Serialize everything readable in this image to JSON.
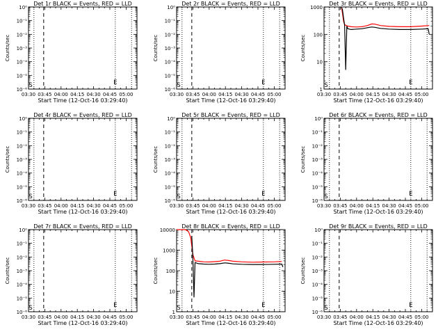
{
  "x_tick_labels": [
    "03:30",
    "03:45",
    "04:00",
    "04:15",
    "04:30",
    "04:45",
    "05:00"
  ],
  "x_label": "Start Time (12-Oct-16 03:29:40)",
  "y_label": "Counts/sec",
  "colors": {
    "events": "#000000",
    "lld": "#ff0000"
  },
  "chart_data": [
    {
      "type": "line",
      "title": "Det 1r BLACK = Events, RED = LLD",
      "yscale": "log",
      "ylim": [
        1,
        1e-06
      ],
      "y_ticks": [
        "10⁰",
        "10⁻¹",
        "10⁻²",
        "10⁻³",
        "10⁻⁴",
        "10⁻⁵",
        "10⁻⁶"
      ],
      "xlim_minutes": [
        0,
        100
      ],
      "start_dashed_min": 14,
      "dotted_min": [
        5,
        80,
        95
      ],
      "marker_S_min": 2,
      "marker_E_min": 80,
      "series": []
    },
    {
      "type": "line",
      "title": "Det 2r BLACK = Events, RED = LLD",
      "yscale": "log",
      "ylim": [
        1,
        1e-06
      ],
      "y_ticks": [
        "10⁰",
        "10⁻¹",
        "10⁻²",
        "10⁻³",
        "10⁻⁴",
        "10⁻⁵",
        "10⁻⁶"
      ],
      "xlim_minutes": [
        0,
        100
      ],
      "start_dashed_min": 14,
      "dotted_min": [
        5,
        80,
        95
      ],
      "marker_S_min": 2,
      "marker_E_min": 80,
      "series": []
    },
    {
      "type": "line",
      "title": "Det 3r BLACK = Events, RED = LLD",
      "yscale": "log",
      "ylim": [
        1,
        1000
      ],
      "y_ticks": [
        "1",
        "10",
        "100",
        "1000"
      ],
      "xlim_minutes": [
        0,
        100
      ],
      "start_dashed_min": 14,
      "dotted_min": [
        5,
        80,
        95
      ],
      "marker_S_min": 2,
      "marker_E_min": 80,
      "series": [
        {
          "color": "lld",
          "points": [
            [
              16,
              1000
            ],
            [
              17,
              600
            ],
            [
              18,
              300
            ],
            [
              19,
              230
            ],
            [
              20,
              215
            ],
            [
              22,
              200
            ],
            [
              25,
              190
            ],
            [
              30,
              185
            ],
            [
              35,
              190
            ],
            [
              40,
              210
            ],
            [
              44,
              240
            ],
            [
              47,
              235
            ],
            [
              52,
              210
            ],
            [
              60,
              195
            ],
            [
              70,
              190
            ],
            [
              80,
              190
            ],
            [
              90,
              200
            ],
            [
              97,
              210
            ]
          ]
        },
        {
          "color": "events",
          "points": [
            [
              16,
              1000
            ],
            [
              17,
              800
            ],
            [
              18,
              400
            ],
            [
              19,
              220
            ],
            [
              20,
              5
            ],
            [
              21,
              200
            ],
            [
              22,
              160
            ],
            [
              25,
              150
            ],
            [
              30,
              155
            ],
            [
              35,
              160
            ],
            [
              40,
              175
            ],
            [
              44,
              185
            ],
            [
              47,
              180
            ],
            [
              52,
              165
            ],
            [
              60,
              155
            ],
            [
              70,
              150
            ],
            [
              80,
              150
            ],
            [
              90,
              155
            ],
            [
              96,
              160
            ],
            [
              97,
              100
            ]
          ]
        }
      ]
    },
    {
      "type": "line",
      "title": "Det 4r BLACK = Events, RED = LLD",
      "yscale": "log",
      "ylim": [
        1,
        1e-06
      ],
      "y_ticks": [
        "10⁰",
        "10⁻¹",
        "10⁻²",
        "10⁻³",
        "10⁻⁴",
        "10⁻⁵",
        "10⁻⁶"
      ],
      "xlim_minutes": [
        0,
        100
      ],
      "start_dashed_min": 14,
      "dotted_min": [
        5,
        80,
        95
      ],
      "marker_S_min": 2,
      "marker_E_min": 80,
      "series": []
    },
    {
      "type": "line",
      "title": "Det 5r BLACK = Events, RED = LLD",
      "yscale": "log",
      "ylim": [
        1,
        1e-06
      ],
      "y_ticks": [
        "10⁰",
        "10⁻¹",
        "10⁻²",
        "10⁻³",
        "10⁻⁴",
        "10⁻⁵",
        "10⁻⁶"
      ],
      "xlim_minutes": [
        0,
        100
      ],
      "start_dashed_min": 14,
      "dotted_min": [
        5,
        80,
        95
      ],
      "marker_S_min": 2,
      "marker_E_min": 80,
      "series": []
    },
    {
      "type": "line",
      "title": "Det 6r BLACK = Events, RED = LLD",
      "yscale": "log",
      "ylim": [
        1,
        1e-06
      ],
      "y_ticks": [
        "10⁰",
        "10⁻¹",
        "10⁻²",
        "10⁻³",
        "10⁻⁴",
        "10⁻⁵",
        "10⁻⁶"
      ],
      "xlim_minutes": [
        0,
        100
      ],
      "start_dashed_min": 14,
      "dotted_min": [
        5,
        80,
        95
      ],
      "marker_S_min": 2,
      "marker_E_min": 80,
      "series": []
    },
    {
      "type": "line",
      "title": "Det 7r BLACK = Events, RED = LLD",
      "yscale": "log",
      "ylim": [
        1,
        1e-06
      ],
      "y_ticks": [
        "10⁰",
        "10⁻¹",
        "10⁻²",
        "10⁻³",
        "10⁻⁴",
        "10⁻⁵",
        "10⁻⁶"
      ],
      "xlim_minutes": [
        0,
        100
      ],
      "start_dashed_min": 14,
      "dotted_min": [
        5,
        80,
        95
      ],
      "marker_S_min": 2,
      "marker_E_min": 80,
      "series": []
    },
    {
      "type": "line",
      "title": "Det 8r BLACK = Events, RED = LLD",
      "yscale": "log",
      "ylim": [
        1,
        10000
      ],
      "y_ticks": [
        "1",
        "10",
        "100",
        "1000",
        "10000"
      ],
      "xlim_minutes": [
        0,
        100
      ],
      "start_dashed_min": 14,
      "dotted_min": [
        5,
        80,
        95
      ],
      "marker_S_min": 2,
      "marker_E_min": 80,
      "series": [
        {
          "color": "lld",
          "points": [
            [
              0,
              10000
            ],
            [
              8,
              10000
            ],
            [
              11,
              8000
            ],
            [
              13,
              4000
            ],
            [
              15,
              600
            ],
            [
              17,
              300
            ],
            [
              20,
              290
            ],
            [
              25,
              270
            ],
            [
              30,
              265
            ],
            [
              35,
              275
            ],
            [
              40,
              290
            ],
            [
              44,
              330
            ],
            [
              47,
              320
            ],
            [
              52,
              290
            ],
            [
              60,
              270
            ],
            [
              70,
              260
            ],
            [
              80,
              265
            ],
            [
              90,
              270
            ],
            [
              97,
              280
            ]
          ]
        },
        {
          "color": "events",
          "points": [
            [
              14,
              5000
            ],
            [
              15,
              400
            ],
            [
              16,
              5
            ],
            [
              17,
              250
            ],
            [
              20,
              220
            ],
            [
              25,
              210
            ],
            [
              30,
              205
            ],
            [
              35,
              210
            ],
            [
              40,
              220
            ],
            [
              44,
              240
            ],
            [
              47,
              235
            ],
            [
              52,
              215
            ],
            [
              60,
              205
            ],
            [
              70,
              200
            ],
            [
              80,
              200
            ],
            [
              90,
              205
            ],
            [
              97,
              210
            ],
            [
              98,
              150
            ]
          ]
        }
      ]
    },
    {
      "type": "line",
      "title": "Det 9r BLACK = Events, RED = LLD",
      "yscale": "log",
      "ylim": [
        1,
        1e-06
      ],
      "y_ticks": [
        "10⁰",
        "10⁻¹",
        "10⁻²",
        "10⁻³",
        "10⁻⁴",
        "10⁻⁵",
        "10⁻⁶"
      ],
      "xlim_minutes": [
        0,
        100
      ],
      "start_dashed_min": 14,
      "dotted_min": [
        5,
        80,
        95
      ],
      "marker_S_min": 2,
      "marker_E_min": 80,
      "series": []
    }
  ]
}
